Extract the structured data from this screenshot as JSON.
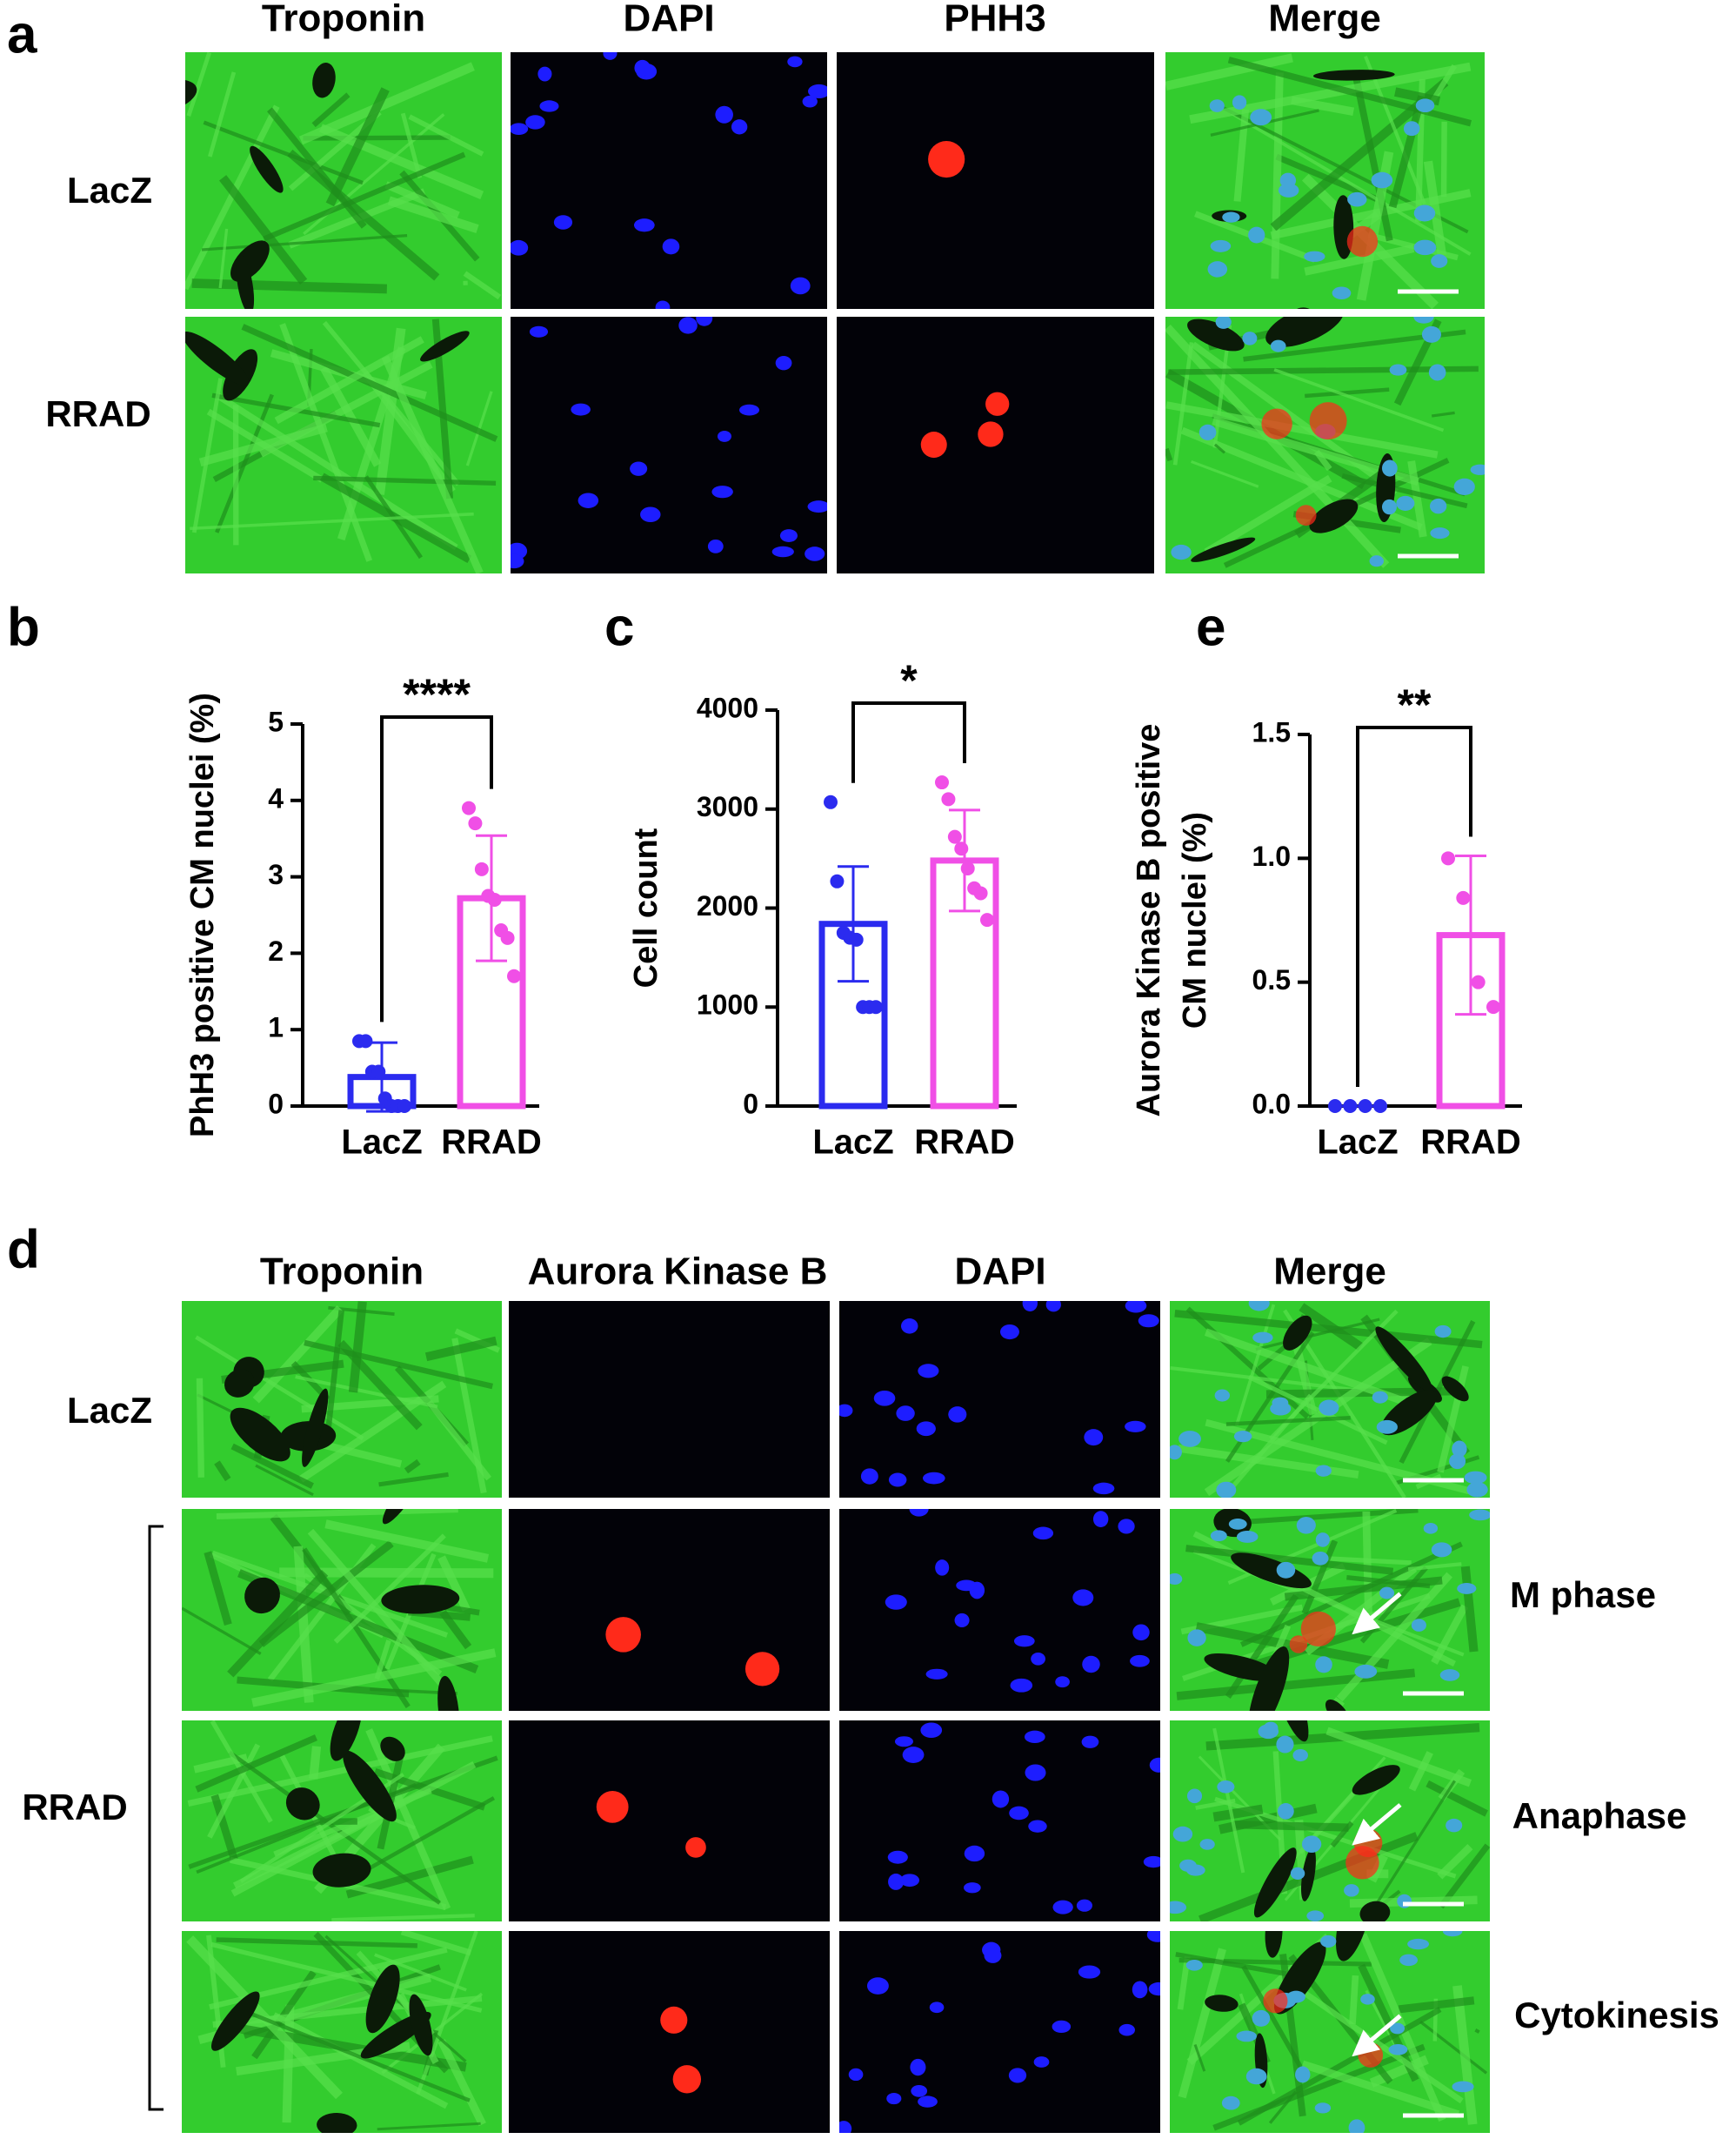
{
  "panels": {
    "a": {
      "label": "a",
      "columns": [
        "Troponin",
        "DAPI",
        "PHH3",
        "Merge"
      ],
      "rows": [
        "LacZ",
        "RRAD"
      ]
    },
    "d": {
      "label": "d",
      "columns": [
        "Troponin",
        "Aurora Kinase B",
        "DAPI",
        "Merge"
      ],
      "rows": [
        "LacZ",
        "RRAD"
      ],
      "phases": [
        "M phase",
        "Anaphase",
        "Cytokinesis"
      ]
    }
  },
  "chart_data": [
    {
      "type": "bar",
      "panel": "b",
      "ylabel": [
        "PhH3 positive CM nuclei (%)"
      ],
      "categories": [
        "LacZ",
        "RRAD"
      ],
      "colors": [
        "#2b2bef",
        "#f04fe6"
      ],
      "values": [
        0.38,
        2.72
      ],
      "errors": [
        0.45,
        0.82
      ],
      "points": [
        [
          0.85,
          0.85,
          0.45,
          0.45,
          0.1,
          0,
          0,
          0
        ],
        [
          3.9,
          3.7,
          3.1,
          2.75,
          2.7,
          2.3,
          2.2,
          1.7
        ]
      ],
      "ylim": [
        0,
        5
      ],
      "yticks": [
        0,
        1,
        2,
        3,
        4,
        5
      ],
      "significance": "****"
    },
    {
      "type": "bar",
      "panel": "c",
      "ylabel": [
        "Cell count"
      ],
      "categories": [
        "LacZ",
        "RRAD"
      ],
      "colors": [
        "#2b2bef",
        "#f04fe6"
      ],
      "values": [
        1840,
        2480
      ],
      "errors": [
        580,
        510
      ],
      "points": [
        [
          3070,
          2270,
          1750,
          1700,
          1680,
          1000,
          1000,
          1000
        ],
        [
          3270,
          3100,
          2720,
          2600,
          2400,
          2200,
          2150,
          1880
        ]
      ],
      "ylim": [
        0,
        4000
      ],
      "yticks": [
        0,
        1000,
        2000,
        3000,
        4000
      ],
      "significance": "*"
    },
    {
      "type": "bar",
      "panel": "e",
      "ylabel": [
        "Aurora Kinase B positive",
        "CM nuclei (%)"
      ],
      "categories": [
        "LacZ",
        "RRAD"
      ],
      "colors": [
        "#2b2bef",
        "#f04fe6"
      ],
      "values": [
        0,
        0.69
      ],
      "errors": [
        0,
        0.32
      ],
      "points": [
        [
          0,
          0,
          0,
          0
        ],
        [
          1.0,
          0.84,
          0.5,
          0.4
        ]
      ],
      "ylim": [
        0,
        1.5
      ],
      "yticks": [
        {
          "value": 0,
          "label": "0.0"
        },
        0.5,
        {
          "value": 1,
          "label": "1.0"
        },
        1.5
      ],
      "significance": "**"
    }
  ]
}
